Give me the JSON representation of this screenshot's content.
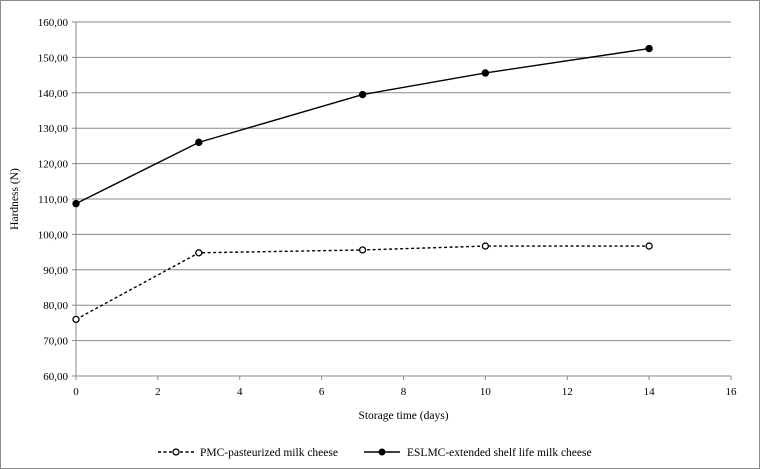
{
  "chart_data": {
    "type": "line",
    "xlabel": "Storage time (days)",
    "ylabel": "Hardness (N)",
    "xlim": [
      0,
      16
    ],
    "ylim": [
      60,
      160
    ],
    "x_ticks": [
      "0",
      "2",
      "4",
      "6",
      "8",
      "10",
      "12",
      "14",
      "16"
    ],
    "y_ticks": [
      "60,00",
      "70,00",
      "80,00",
      "90,00",
      "100,00",
      "110,00",
      "120,00",
      "130,00",
      "140,00",
      "150,00",
      "160,00"
    ],
    "grid": "horizontal",
    "legend_position": "bottom",
    "series": [
      {
        "name": "PMC-pasteurized milk cheese",
        "style": "dashed-open-circle",
        "color": "#000000",
        "x": [
          0,
          3,
          7,
          10,
          14
        ],
        "y": [
          76.0,
          94.8,
          95.6,
          96.7,
          96.7
        ]
      },
      {
        "name": "ESLMC-extended shelf life milk cheese",
        "style": "solid-filled-circle",
        "color": "#000000",
        "x": [
          0,
          3,
          7,
          10,
          14
        ],
        "y": [
          108.7,
          126.0,
          139.5,
          145.6,
          152.5
        ]
      }
    ]
  }
}
